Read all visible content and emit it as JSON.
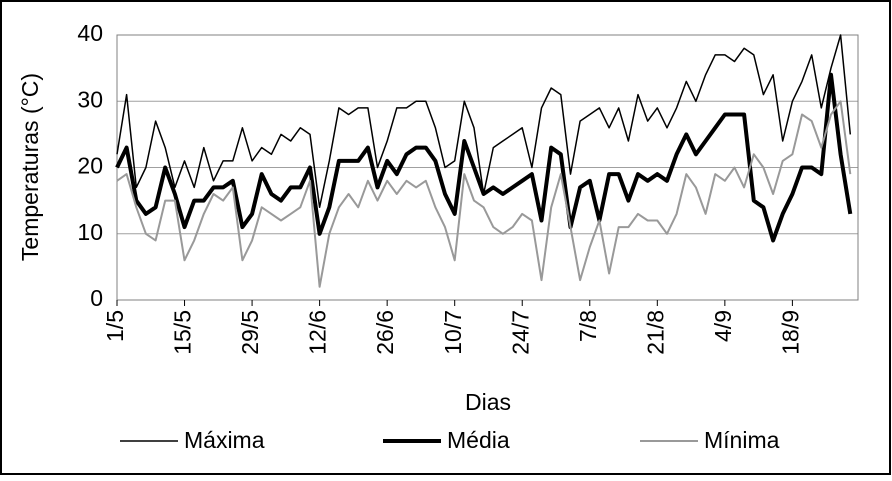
{
  "chart_data": {
    "type": "line",
    "x_label": "Dias",
    "y_label": "Temperaturas (°C)",
    "categories": [
      "1/5",
      null,
      null,
      null,
      null,
      null,
      null,
      "15/5",
      null,
      null,
      null,
      null,
      null,
      null,
      "29/5",
      null,
      null,
      null,
      null,
      null,
      null,
      "12/6",
      null,
      null,
      null,
      null,
      null,
      null,
      "26/6",
      null,
      null,
      null,
      null,
      null,
      null,
      "10/7",
      null,
      null,
      null,
      null,
      null,
      null,
      "24/7",
      null,
      null,
      null,
      null,
      null,
      null,
      "7/8",
      null,
      null,
      null,
      null,
      null,
      null,
      "21/8",
      null,
      null,
      null,
      null,
      null,
      null,
      "4/9",
      null,
      null,
      null,
      null,
      null,
      null,
      "18/9",
      null,
      null,
      null,
      null,
      null,
      null
    ],
    "series": [
      {
        "name": "Máxima",
        "color": "#000000",
        "width": 1.5,
        "values": [
          22,
          31,
          17,
          20,
          27,
          23,
          17,
          21,
          17,
          23,
          18,
          21,
          21,
          26,
          21,
          23,
          22,
          25,
          24,
          26,
          25,
          14,
          21,
          29,
          28,
          29,
          29,
          20,
          24,
          29,
          29,
          30,
          30,
          26,
          20,
          21,
          30,
          26,
          16,
          23,
          24,
          25,
          26,
          20,
          29,
          32,
          31,
          19,
          27,
          28,
          29,
          26,
          29,
          24,
          31,
          27,
          29,
          26,
          29,
          33,
          30,
          34,
          37,
          37,
          36,
          38,
          37,
          31,
          34,
          24,
          30,
          33,
          37,
          29,
          35,
          40,
          25
        ]
      },
      {
        "name": "Média",
        "color": "#000000",
        "width": 4,
        "values": [
          20,
          23,
          15,
          13,
          14,
          20,
          16,
          11,
          15,
          15,
          17,
          17,
          18,
          11,
          13,
          19,
          16,
          15,
          17,
          17,
          20,
          10,
          14,
          21,
          21,
          21,
          23,
          17,
          21,
          19,
          22,
          23,
          23,
          21,
          16,
          13,
          24,
          20,
          16,
          17,
          16,
          17,
          18,
          19,
          12,
          23,
          22,
          11,
          17,
          18,
          12,
          19,
          19,
          15,
          19,
          18,
          19,
          18,
          22,
          25,
          22,
          24,
          26,
          28,
          28,
          28,
          15,
          14,
          9,
          13,
          16,
          20,
          20,
          19,
          34,
          22,
          13
        ]
      },
      {
        "name": "Mínima",
        "color": "#999999",
        "width": 2,
        "values": [
          18,
          19,
          14,
          10,
          9,
          15,
          15,
          6,
          9,
          13,
          16,
          15,
          17,
          6,
          9,
          14,
          13,
          12,
          13,
          14,
          18,
          2,
          10,
          14,
          16,
          14,
          18,
          15,
          18,
          16,
          18,
          17,
          18,
          14,
          11,
          6,
          19,
          15,
          14,
          11,
          10,
          11,
          13,
          12,
          3,
          14,
          19,
          11,
          3,
          8,
          12,
          4,
          11,
          11,
          13,
          12,
          12,
          10,
          13,
          19,
          17,
          13,
          19,
          18,
          20,
          17,
          22,
          20,
          16,
          21,
          22,
          28,
          27,
          23,
          28,
          30,
          19
        ]
      }
    ],
    "ylim": [
      0,
      40
    ],
    "yticks": [
      0,
      10,
      20,
      30,
      40
    ],
    "grid": true,
    "legend": "bottom"
  }
}
